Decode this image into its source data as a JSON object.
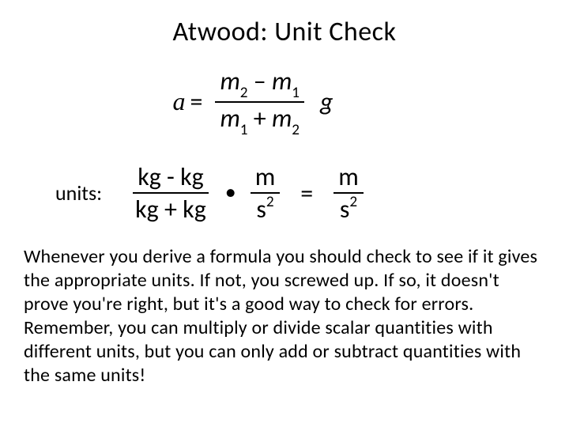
{
  "title": "Atwood:  Unit Check",
  "formula": {
    "lhs_var": "a",
    "eq": "=",
    "num_m2": "m",
    "num_sub2": "2",
    "num_minus": " – ",
    "num_m1": "m",
    "num_sub1": "1",
    "den_m1": "m",
    "den_sub1": "1",
    "den_plus": " + ",
    "den_m2": "m",
    "den_sub2": "2",
    "g": "g"
  },
  "units": {
    "label": "units:",
    "num_l": "kg",
    "num_op": "  -  ",
    "num_r": "kg",
    "den_l": "kg",
    "den_op": " +  ",
    "den_r": "kg",
    "dot": "•",
    "mid_num": "m",
    "mid_den_base": "s",
    "mid_den_exp": "2",
    "eq": "=",
    "res_num": "m",
    "res_den_base": "s",
    "res_den_exp": "2"
  },
  "body": "Whenever you derive a formula you should check to see if it gives the appropriate units. If not, you screwed up. If so, it doesn't prove you're right, but it's a good way to check for errors.  Remember, you can multiply or divide scalar quantities with different units, but you can only add or subtract quantities with the same units!",
  "colors": {
    "background": "#ffffff",
    "text": "#000000"
  },
  "fonts": {
    "title_size": 34,
    "formula_size": 32,
    "body_size": 24
  }
}
